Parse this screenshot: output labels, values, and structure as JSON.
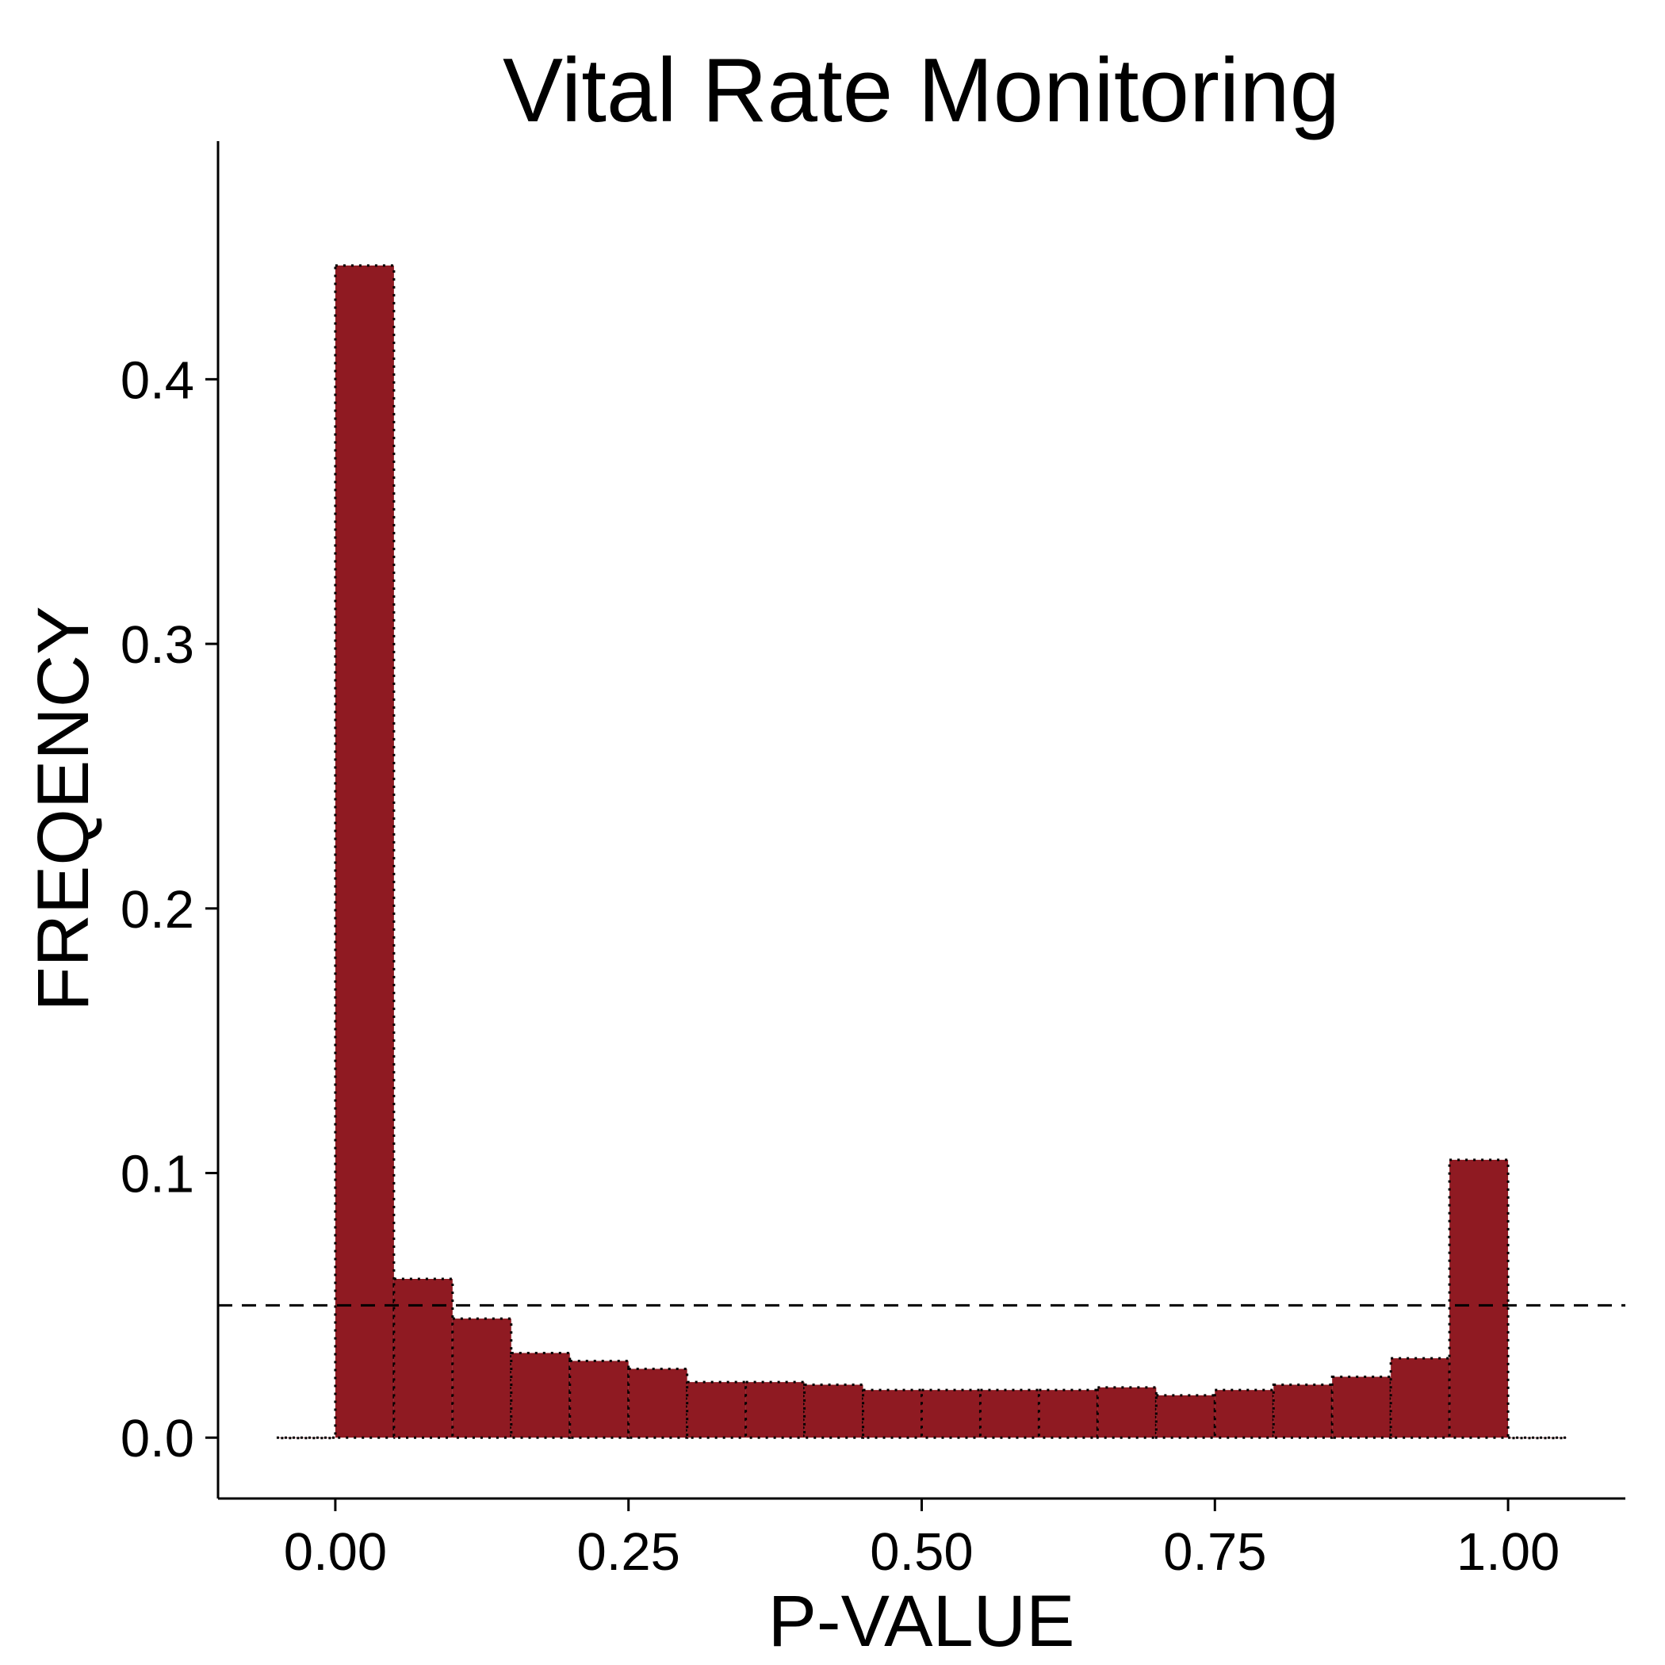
{
  "chart_data": {
    "type": "bar",
    "title": "Vital Rate Monitoring",
    "xlabel": "P-VALUE",
    "ylabel": "FREQENCY",
    "xlim": [
      -0.1,
      1.1
    ],
    "ylim": [
      -0.023,
      0.49
    ],
    "x_ticks": [
      0.0,
      0.25,
      0.5,
      0.75,
      1.0
    ],
    "x_tick_labels": [
      "0.00",
      "0.25",
      "0.50",
      "0.75",
      "1.00"
    ],
    "y_ticks": [
      0.0,
      0.1,
      0.2,
      0.3,
      0.4
    ],
    "y_tick_labels": [
      "0.0",
      "0.1",
      "0.2",
      "0.3",
      "0.4"
    ],
    "bin_width": 0.05,
    "bin_starts": [
      -0.05,
      0.0,
      0.05,
      0.1,
      0.15,
      0.2,
      0.25,
      0.3,
      0.35,
      0.4,
      0.45,
      0.5,
      0.55,
      0.6,
      0.65,
      0.7,
      0.75,
      0.8,
      0.85,
      0.9,
      0.95,
      1.0
    ],
    "values": [
      0.0,
      0.443,
      0.06,
      0.045,
      0.032,
      0.029,
      0.026,
      0.021,
      0.021,
      0.02,
      0.018,
      0.018,
      0.018,
      0.018,
      0.019,
      0.016,
      0.018,
      0.02,
      0.023,
      0.03,
      0.105,
      0.0
    ],
    "reference_line": 0.05,
    "bar_color": "#8f1a22",
    "bar_outline": "dotted black",
    "reference_line_style": "dashed",
    "grid": false,
    "legend": "none"
  }
}
